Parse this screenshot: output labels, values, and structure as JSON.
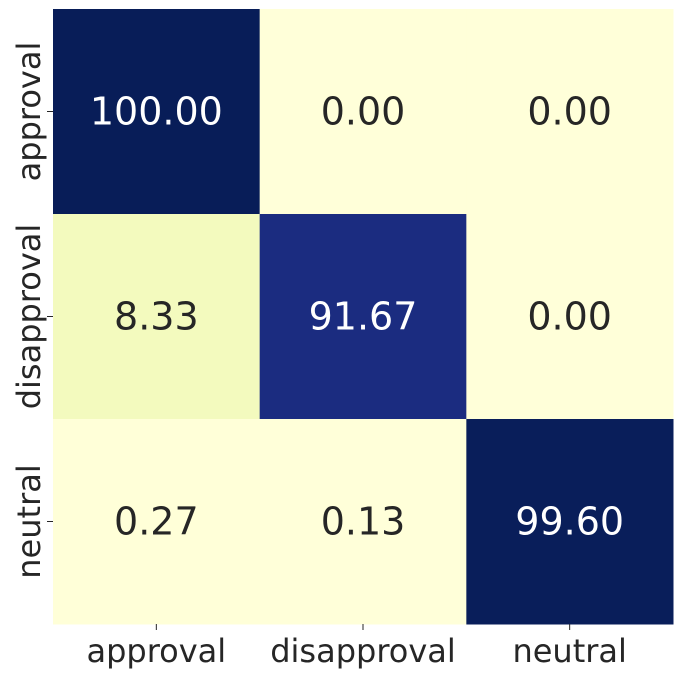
{
  "chart_data": {
    "type": "heatmap",
    "title": "",
    "xlabel": "",
    "ylabel": "",
    "x_categories": [
      "approval",
      "disapproval",
      "neutral"
    ],
    "y_categories": [
      "approval",
      "disapproval",
      "neutral"
    ],
    "values": [
      [
        100.0,
        0.0,
        0.0
      ],
      [
        8.33,
        91.67,
        0.0
      ],
      [
        0.27,
        0.13,
        99.6
      ]
    ],
    "value_format": "2 decimals",
    "colormap": "YlGnBu",
    "vmin": 0,
    "vmax": 100,
    "colorbar": false,
    "grid": false,
    "colors": {
      "low": "#ffffd9",
      "high": "#081d58",
      "text_dark": "#262626",
      "text_light": "#ffffff"
    }
  }
}
